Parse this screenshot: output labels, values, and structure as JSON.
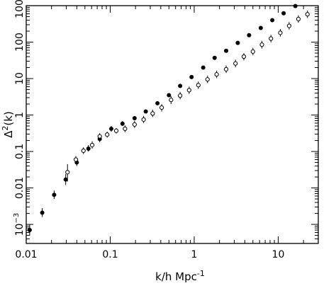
{
  "chart_data": {
    "type": "scatter",
    "title": "",
    "xlabel": "k/h Mpc",
    "xlabel_exponent": "-1",
    "ylabel_symbol": "Δ",
    "ylabel_exponent": "2",
    "ylabel_arg": "(k)",
    "xscale": "log",
    "yscale": "log",
    "xlim": [
      0.01,
      30
    ],
    "ylim": [
      0.0003,
      1000
    ],
    "grid": false,
    "legend": "none",
    "x_tick_labels": [
      {
        "value": 0.01,
        "text": "0.01"
      },
      {
        "value": 0.1,
        "text": "0.1"
      },
      {
        "value": 1,
        "text": "1"
      },
      {
        "value": 10,
        "text": "10"
      }
    ],
    "y_tick_labels": [
      {
        "value": 0.001,
        "base": "10",
        "exp": "−3"
      },
      {
        "value": 0.01,
        "text": "0.01"
      },
      {
        "value": 0.1,
        "text": "0.1"
      },
      {
        "value": 1,
        "text": "1"
      },
      {
        "value": 10,
        "text": "10"
      },
      {
        "value": 100,
        "text": "100"
      },
      {
        "value": 1000,
        "text": "1000"
      }
    ],
    "series": [
      {
        "marker": "filled-circle",
        "points": [
          {
            "x": 0.011,
            "y": 0.0007,
            "lo": 0.0005,
            "hi": 0.001
          },
          {
            "x": 0.0155,
            "y": 0.0021,
            "lo": 0.0016,
            "hi": 0.0028
          },
          {
            "x": 0.0215,
            "y": 0.0065,
            "lo": 0.005,
            "hi": 0.0085
          },
          {
            "x": 0.0295,
            "y": 0.017,
            "lo": 0.012,
            "hi": 0.024
          },
          {
            "x": 0.04,
            "y": 0.05,
            "lo": 0.04,
            "hi": 0.063
          },
          {
            "x": 0.055,
            "y": 0.12,
            "lo": 0.1,
            "hi": 0.15
          },
          {
            "x": 0.075,
            "y": 0.22,
            "lo": 0.18,
            "hi": 0.28
          },
          {
            "x": 0.103,
            "y": 0.42,
            "lo": 0.35,
            "hi": 0.5
          },
          {
            "x": 0.14,
            "y": 0.58,
            "lo": 0.5,
            "hi": 0.68
          },
          {
            "x": 0.195,
            "y": 0.82
          },
          {
            "x": 0.265,
            "y": 1.25
          },
          {
            "x": 0.365,
            "y": 2.1
          },
          {
            "x": 0.5,
            "y": 3.5
          },
          {
            "x": 0.68,
            "y": 6.3
          },
          {
            "x": 0.93,
            "y": 11
          },
          {
            "x": 1.28,
            "y": 20
          },
          {
            "x": 1.75,
            "y": 37
          },
          {
            "x": 2.4,
            "y": 58
          },
          {
            "x": 3.3,
            "y": 95
          },
          {
            "x": 4.5,
            "y": 155
          },
          {
            "x": 6.2,
            "y": 245
          },
          {
            "x": 8.5,
            "y": 400
          },
          {
            "x": 11.6,
            "y": 620
          },
          {
            "x": 16,
            "y": 980
          }
        ]
      },
      {
        "marker": "open-circle",
        "points": [
          {
            "x": 0.031,
            "y": 0.027,
            "lo": 0.015,
            "hi": 0.045
          },
          {
            "x": 0.039,
            "y": 0.06,
            "lo": 0.045,
            "hi": 0.075
          },
          {
            "x": 0.048,
            "y": 0.105,
            "lo": 0.085,
            "hi": 0.13
          },
          {
            "x": 0.061,
            "y": 0.15,
            "lo": 0.12,
            "hi": 0.19
          },
          {
            "x": 0.075,
            "y": 0.26,
            "lo": 0.2,
            "hi": 0.32
          },
          {
            "x": 0.092,
            "y": 0.29,
            "lo": 0.24,
            "hi": 0.35
          },
          {
            "x": 0.118,
            "y": 0.37,
            "lo": 0.31,
            "hi": 0.44
          },
          {
            "x": 0.15,
            "y": 0.42,
            "lo": 0.34,
            "hi": 0.52
          },
          {
            "x": 0.195,
            "y": 0.55,
            "lo": 0.44,
            "hi": 0.69
          },
          {
            "x": 0.25,
            "y": 0.75,
            "lo": 0.6,
            "hi": 0.95
          },
          {
            "x": 0.32,
            "y": 1.1,
            "lo": 0.88,
            "hi": 1.4
          },
          {
            "x": 0.41,
            "y": 1.6,
            "lo": 1.25,
            "hi": 2.0
          },
          {
            "x": 0.53,
            "y": 2.6,
            "lo": 2.0,
            "hi": 3.3
          },
          {
            "x": 0.68,
            "y": 3.4,
            "lo": 2.7,
            "hi": 4.3
          },
          {
            "x": 0.87,
            "y": 4.8,
            "lo": 3.8,
            "hi": 6.0
          },
          {
            "x": 1.12,
            "y": 6.6,
            "lo": 5.2,
            "hi": 8.3
          },
          {
            "x": 1.44,
            "y": 9.5,
            "lo": 7.5,
            "hi": 12
          },
          {
            "x": 1.85,
            "y": 13,
            "lo": 10.3,
            "hi": 16.5
          },
          {
            "x": 2.4,
            "y": 18,
            "lo": 14.2,
            "hi": 22.8
          },
          {
            "x": 3.1,
            "y": 26,
            "lo": 20.5,
            "hi": 33
          },
          {
            "x": 3.9,
            "y": 40,
            "lo": 31.5,
            "hi": 50
          },
          {
            "x": 5.0,
            "y": 55,
            "lo": 43.5,
            "hi": 70
          },
          {
            "x": 6.4,
            "y": 85,
            "lo": 67,
            "hi": 108
          },
          {
            "x": 8.2,
            "y": 125,
            "lo": 99,
            "hi": 158
          },
          {
            "x": 10.6,
            "y": 180,
            "lo": 142,
            "hi": 228
          },
          {
            "x": 13.5,
            "y": 280,
            "lo": 221,
            "hi": 354
          },
          {
            "x": 17.4,
            "y": 430,
            "lo": 340,
            "hi": 544
          },
          {
            "x": 22.3,
            "y": 580,
            "lo": 458,
            "hi": 734
          }
        ]
      }
    ]
  }
}
